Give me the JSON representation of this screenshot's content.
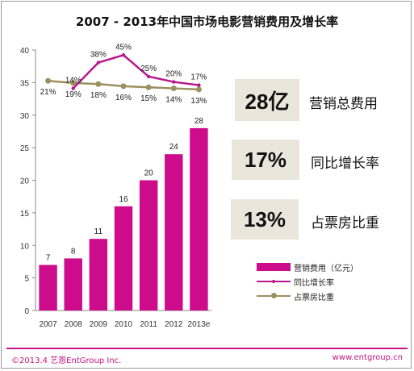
{
  "title": "2007 - 2013年中国市场电影营销费用及增长率",
  "chart_data": {
    "type": "bar",
    "categories": [
      "2007",
      "2008",
      "2009",
      "2010",
      "2011",
      "2012",
      "2013e"
    ],
    "ylim": [
      0,
      40
    ],
    "yticks": [
      0,
      5,
      10,
      15,
      20,
      25,
      30,
      35,
      40
    ],
    "grid": false,
    "legend_position": "bottom-right",
    "series": [
      {
        "name": "营销费用（亿元）",
        "kind": "bar",
        "values": [
          7,
          8,
          11,
          16,
          20,
          24,
          28
        ],
        "labels": [
          "7",
          "8",
          "11",
          "16",
          "20",
          "24",
          "28"
        ],
        "color": "#cc0c8a"
      },
      {
        "name": "同比增长率",
        "kind": "line",
        "values_pct": [
          null,
          14,
          38,
          45,
          25,
          20,
          17
        ],
        "labels": [
          "",
          "14%",
          "38%",
          "45%",
          "25%",
          "20%",
          "17%"
        ],
        "color": "#b8168e"
      },
      {
        "name": "占票房比重",
        "kind": "line",
        "values_pct": [
          21,
          19,
          18,
          16,
          15,
          14,
          13
        ],
        "labels": [
          "21%",
          "19%",
          "18%",
          "16%",
          "15%",
          "14%",
          "13%"
        ],
        "color": "#9b9060"
      }
    ]
  },
  "kpis": [
    {
      "value": "28亿",
      "label": "营销总费用"
    },
    {
      "value": "17%",
      "label": "同比增长率"
    },
    {
      "value": "13%",
      "label": "占票房比重"
    }
  ],
  "footer": {
    "left": "©2013.4 艺恩EntGroup Inc.",
    "right": "www.entgroup.cn"
  }
}
